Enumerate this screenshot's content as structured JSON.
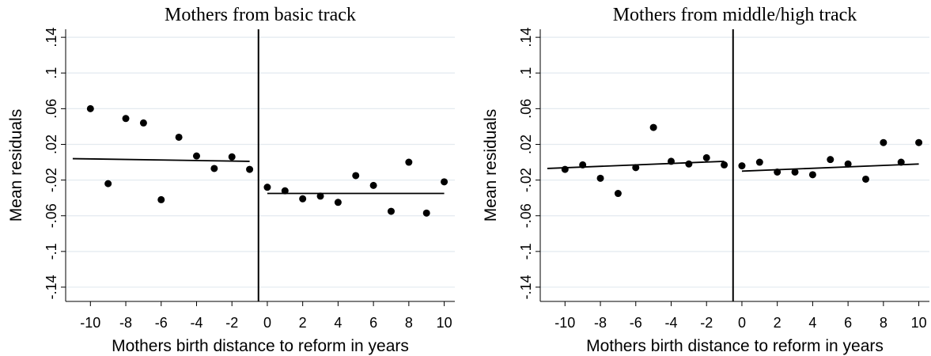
{
  "chart_data": [
    {
      "type": "scatter",
      "title": "Mothers from basic track",
      "xlabel": "Mothers birth distance to reform in years",
      "ylabel": "Mean residuals",
      "x": [
        -10,
        -9,
        -8,
        -7,
        -6,
        -5,
        -4,
        -3,
        -2,
        -1,
        0,
        1,
        2,
        3,
        4,
        5,
        6,
        7,
        8,
        9,
        10
      ],
      "series": [
        {
          "color": "#000000",
          "values": [
            0.06,
            -0.024,
            0.049,
            0.044,
            -0.042,
            0.028,
            0.007,
            -0.007,
            0.006,
            -0.008,
            -0.028,
            -0.032,
            -0.041,
            -0.038,
            -0.045,
            -0.015,
            -0.026,
            -0.055,
            0.0,
            -0.057,
            -0.022
          ]
        }
      ],
      "fit_lines": [
        {
          "x": [
            -11,
            -1
          ],
          "values": [
            0.004,
            0.001
          ]
        },
        {
          "x": [
            0,
            10
          ],
          "values": [
            -0.035,
            -0.035
          ]
        }
      ],
      "reference_x": -0.5,
      "xlim": [
        -11.4,
        10.6
      ],
      "ylim": [
        -0.156,
        0.149
      ],
      "xticks": [
        -10,
        -8,
        -6,
        -4,
        -2,
        0,
        2,
        4,
        6,
        8,
        10
      ],
      "yticks": [
        {
          "value": -0.14,
          "label": "-.14"
        },
        {
          "value": -0.1,
          "label": "-.1"
        },
        {
          "value": -0.06,
          "label": "-.06"
        },
        {
          "value": -0.02,
          "label": "-.02"
        },
        {
          "value": 0.02,
          "label": ".02"
        },
        {
          "value": 0.06,
          "label": ".06"
        },
        {
          "value": 0.1,
          "label": ".1"
        },
        {
          "value": 0.14,
          "label": ".14"
        }
      ],
      "grid": true
    },
    {
      "type": "scatter",
      "title": "Mothers from middle/high track",
      "xlabel": "Mothers birth distance to reform in years",
      "ylabel": "Mean residuals",
      "x": [
        -10,
        -9,
        -8,
        -7,
        -6,
        -5,
        -4,
        -3,
        -2,
        -1,
        0,
        1,
        2,
        3,
        4,
        5,
        6,
        7,
        8,
        9,
        10
      ],
      "series": [
        {
          "color": "#000000",
          "values": [
            -0.008,
            -0.003,
            -0.018,
            -0.035,
            -0.006,
            0.039,
            0.001,
            -0.002,
            0.005,
            -0.003,
            -0.004,
            0.0,
            -0.011,
            -0.011,
            -0.014,
            0.003,
            -0.002,
            -0.019,
            0.022,
            0.0,
            0.022
          ]
        }
      ],
      "fit_lines": [
        {
          "x": [
            -11,
            -1
          ],
          "values": [
            -0.007,
            0.001
          ]
        },
        {
          "x": [
            0,
            10
          ],
          "values": [
            -0.01,
            -0.002
          ]
        }
      ],
      "reference_x": -0.5,
      "xlim": [
        -11.4,
        10.6
      ],
      "ylim": [
        -0.156,
        0.149
      ],
      "xticks": [
        -10,
        -8,
        -6,
        -4,
        -2,
        0,
        2,
        4,
        6,
        8,
        10
      ],
      "yticks": [
        {
          "value": -0.14,
          "label": "-.14"
        },
        {
          "value": -0.1,
          "label": "-.1"
        },
        {
          "value": -0.06,
          "label": "-.06"
        },
        {
          "value": -0.02,
          "label": "-.02"
        },
        {
          "value": 0.02,
          "label": ".02"
        },
        {
          "value": 0.06,
          "label": ".06"
        },
        {
          "value": 0.1,
          "label": ".1"
        },
        {
          "value": 0.14,
          "label": ".14"
        }
      ],
      "grid": true
    }
  ]
}
